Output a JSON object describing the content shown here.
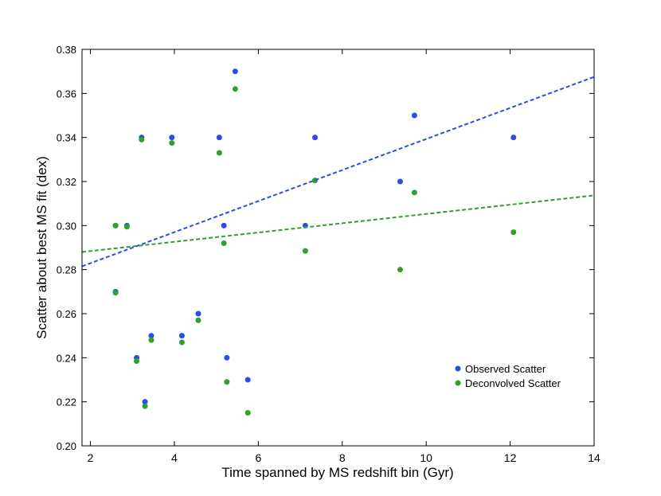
{
  "chart_data": {
    "type": "scatter",
    "xlabel": "Time spanned by MS redshift bin (Gyr)",
    "ylabel": "Scatter about best MS fit (dex)",
    "xlim": [
      1.8,
      14
    ],
    "ylim": [
      0.2,
      0.38
    ],
    "x_ticks": [
      2,
      4,
      6,
      8,
      10,
      12,
      14
    ],
    "y_ticks": [
      0.2,
      0.22,
      0.24,
      0.26,
      0.28,
      0.3,
      0.32,
      0.34,
      0.36,
      0.38
    ],
    "x_tick_labels": [
      "2",
      "4",
      "6",
      "8",
      "10",
      "12",
      "14"
    ],
    "y_tick_labels": [
      "0.20",
      "0.22",
      "0.24",
      "0.26",
      "0.28",
      "0.30",
      "0.32",
      "0.34",
      "0.36",
      "0.38"
    ],
    "legend_position": "lower-right",
    "grid": false,
    "series": [
      {
        "name": "Observed Scatter",
        "color": "#2b4bea",
        "x": [
          2.6,
          2.6,
          2.87,
          3.1,
          3.22,
          3.3,
          3.45,
          3.94,
          4.18,
          4.57,
          5.07,
          5.18,
          5.25,
          5.45,
          5.75,
          7.12,
          7.35,
          9.38,
          9.72,
          12.08
        ],
        "y": [
          0.3,
          0.27,
          0.3,
          0.24,
          0.34,
          0.22,
          0.25,
          0.34,
          0.25,
          0.26,
          0.34,
          0.3,
          0.24,
          0.37,
          0.23,
          0.3,
          0.34,
          0.32,
          0.35,
          0.34
        ]
      },
      {
        "name": "Deconvolved Scatter",
        "color": "#2ea02c",
        "x": [
          2.6,
          2.6,
          2.87,
          3.1,
          3.22,
          3.3,
          3.45,
          3.94,
          4.18,
          4.57,
          5.07,
          5.18,
          5.25,
          5.45,
          5.75,
          7.12,
          7.35,
          9.38,
          9.72,
          12.08
        ],
        "y": [
          0.3,
          0.2695,
          0.2995,
          0.2385,
          0.339,
          0.218,
          0.248,
          0.3375,
          0.247,
          0.257,
          0.333,
          0.292,
          0.229,
          0.362,
          0.215,
          0.2885,
          0.3205,
          0.28,
          0.315,
          0.297
        ]
      }
    ],
    "fits": [
      {
        "series": "Observed Scatter",
        "color": "#2b4bea",
        "x": [
          1.8,
          14
        ],
        "y": [
          0.2815,
          0.3675
        ]
      },
      {
        "series": "Deconvolved Scatter",
        "color": "#2ea02c",
        "x": [
          1.8,
          14
        ],
        "y": [
          0.288,
          0.3137
        ]
      }
    ]
  }
}
